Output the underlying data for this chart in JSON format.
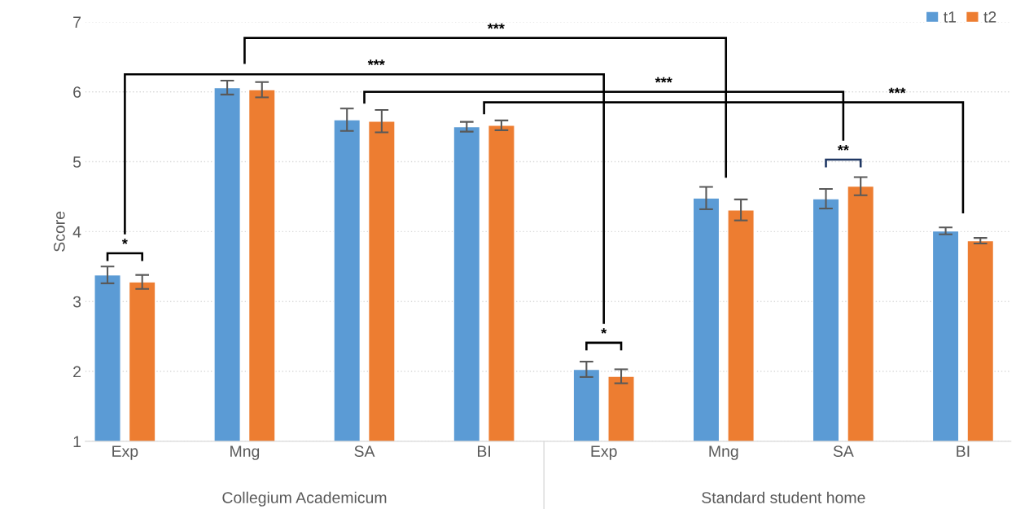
{
  "chart_data": {
    "type": "bar",
    "ylabel": "Score",
    "categories": [
      "Exp",
      "Mng",
      "SA",
      "BI",
      "Exp",
      "Mng",
      "SA",
      "BI"
    ],
    "series": [
      {
        "name": "t1",
        "color": "#5b9bd5",
        "values": [
          3.38,
          6.06,
          5.6,
          5.5,
          2.03,
          4.48,
          4.47,
          4.01
        ],
        "errors": [
          0.12,
          0.1,
          0.16,
          0.07,
          0.11,
          0.16,
          0.14,
          0.05
        ]
      },
      {
        "name": "t2",
        "color": "#ed7d31",
        "values": [
          3.28,
          6.03,
          5.58,
          5.52,
          1.93,
          4.31,
          4.65,
          3.87
        ],
        "errors": [
          0.1,
          0.11,
          0.16,
          0.07,
          0.1,
          0.15,
          0.13,
          0.04
        ]
      }
    ],
    "annotations": [
      "Collegium Academicum",
      "Standard student home",
      "*",
      "***",
      "***",
      "***",
      "***",
      "*",
      "**"
    ],
    "ylim": [
      1,
      7
    ],
    "yticks": [
      1,
      2,
      3,
      4,
      5,
      6,
      7
    ],
    "grid": "y",
    "legend": "top right"
  }
}
